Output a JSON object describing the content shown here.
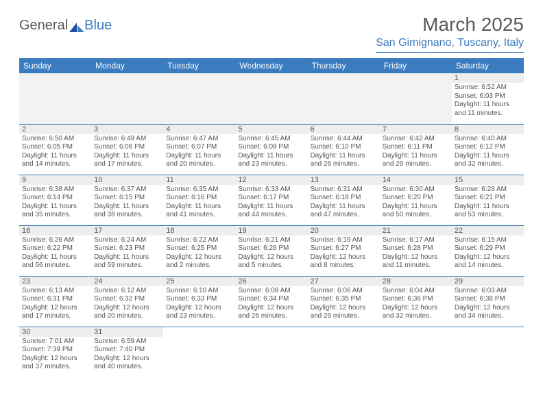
{
  "logo": {
    "text1": "General",
    "text2": "Blue",
    "color1": "#5a5a5a",
    "color2": "#3b7bbf"
  },
  "title": "March 2025",
  "location": "San Gimignano, Tuscany, Italy",
  "colors": {
    "header_bg": "#3b7bbf",
    "header_fg": "#ffffff",
    "text": "#555555",
    "accent": "#3b7bbf",
    "row_stripe": "#eeeeee",
    "empty_bg": "#f2f2f2"
  },
  "typography": {
    "title_fontsize": 28,
    "location_fontsize": 16,
    "header_fontsize": 12,
    "daynum_fontsize": 11,
    "body_fontsize": 10
  },
  "days_of_week": [
    "Sunday",
    "Monday",
    "Tuesday",
    "Wednesday",
    "Thursday",
    "Friday",
    "Saturday"
  ],
  "weeks": [
    [
      null,
      null,
      null,
      null,
      null,
      null,
      {
        "n": "1",
        "sunrise": "Sunrise: 6:52 AM",
        "sunset": "Sunset: 6:03 PM",
        "daylight": "Daylight: 11 hours and 11 minutes."
      }
    ],
    [
      {
        "n": "2",
        "sunrise": "Sunrise: 6:50 AM",
        "sunset": "Sunset: 6:05 PM",
        "daylight": "Daylight: 11 hours and 14 minutes."
      },
      {
        "n": "3",
        "sunrise": "Sunrise: 6:49 AM",
        "sunset": "Sunset: 6:06 PM",
        "daylight": "Daylight: 11 hours and 17 minutes."
      },
      {
        "n": "4",
        "sunrise": "Sunrise: 6:47 AM",
        "sunset": "Sunset: 6:07 PM",
        "daylight": "Daylight: 11 hours and 20 minutes."
      },
      {
        "n": "5",
        "sunrise": "Sunrise: 6:45 AM",
        "sunset": "Sunset: 6:09 PM",
        "daylight": "Daylight: 11 hours and 23 minutes."
      },
      {
        "n": "6",
        "sunrise": "Sunrise: 6:44 AM",
        "sunset": "Sunset: 6:10 PM",
        "daylight": "Daylight: 11 hours and 26 minutes."
      },
      {
        "n": "7",
        "sunrise": "Sunrise: 6:42 AM",
        "sunset": "Sunset: 6:11 PM",
        "daylight": "Daylight: 11 hours and 29 minutes."
      },
      {
        "n": "8",
        "sunrise": "Sunrise: 6:40 AM",
        "sunset": "Sunset: 6:12 PM",
        "daylight": "Daylight: 11 hours and 32 minutes."
      }
    ],
    [
      {
        "n": "9",
        "sunrise": "Sunrise: 6:38 AM",
        "sunset": "Sunset: 6:14 PM",
        "daylight": "Daylight: 11 hours and 35 minutes."
      },
      {
        "n": "10",
        "sunrise": "Sunrise: 6:37 AM",
        "sunset": "Sunset: 6:15 PM",
        "daylight": "Daylight: 11 hours and 38 minutes."
      },
      {
        "n": "11",
        "sunrise": "Sunrise: 6:35 AM",
        "sunset": "Sunset: 6:16 PM",
        "daylight": "Daylight: 11 hours and 41 minutes."
      },
      {
        "n": "12",
        "sunrise": "Sunrise: 6:33 AM",
        "sunset": "Sunset: 6:17 PM",
        "daylight": "Daylight: 11 hours and 44 minutes."
      },
      {
        "n": "13",
        "sunrise": "Sunrise: 6:31 AM",
        "sunset": "Sunset: 6:18 PM",
        "daylight": "Daylight: 11 hours and 47 minutes."
      },
      {
        "n": "14",
        "sunrise": "Sunrise: 6:30 AM",
        "sunset": "Sunset: 6:20 PM",
        "daylight": "Daylight: 11 hours and 50 minutes."
      },
      {
        "n": "15",
        "sunrise": "Sunrise: 6:28 AM",
        "sunset": "Sunset: 6:21 PM",
        "daylight": "Daylight: 11 hours and 53 minutes."
      }
    ],
    [
      {
        "n": "16",
        "sunrise": "Sunrise: 6:26 AM",
        "sunset": "Sunset: 6:22 PM",
        "daylight": "Daylight: 11 hours and 56 minutes."
      },
      {
        "n": "17",
        "sunrise": "Sunrise: 6:24 AM",
        "sunset": "Sunset: 6:23 PM",
        "daylight": "Daylight: 11 hours and 59 minutes."
      },
      {
        "n": "18",
        "sunrise": "Sunrise: 6:22 AM",
        "sunset": "Sunset: 6:25 PM",
        "daylight": "Daylight: 12 hours and 2 minutes."
      },
      {
        "n": "19",
        "sunrise": "Sunrise: 6:21 AM",
        "sunset": "Sunset: 6:26 PM",
        "daylight": "Daylight: 12 hours and 5 minutes."
      },
      {
        "n": "20",
        "sunrise": "Sunrise: 6:19 AM",
        "sunset": "Sunset: 6:27 PM",
        "daylight": "Daylight: 12 hours and 8 minutes."
      },
      {
        "n": "21",
        "sunrise": "Sunrise: 6:17 AM",
        "sunset": "Sunset: 6:28 PM",
        "daylight": "Daylight: 12 hours and 11 minutes."
      },
      {
        "n": "22",
        "sunrise": "Sunrise: 6:15 AM",
        "sunset": "Sunset: 6:29 PM",
        "daylight": "Daylight: 12 hours and 14 minutes."
      }
    ],
    [
      {
        "n": "23",
        "sunrise": "Sunrise: 6:13 AM",
        "sunset": "Sunset: 6:31 PM",
        "daylight": "Daylight: 12 hours and 17 minutes."
      },
      {
        "n": "24",
        "sunrise": "Sunrise: 6:12 AM",
        "sunset": "Sunset: 6:32 PM",
        "daylight": "Daylight: 12 hours and 20 minutes."
      },
      {
        "n": "25",
        "sunrise": "Sunrise: 6:10 AM",
        "sunset": "Sunset: 6:33 PM",
        "daylight": "Daylight: 12 hours and 23 minutes."
      },
      {
        "n": "26",
        "sunrise": "Sunrise: 6:08 AM",
        "sunset": "Sunset: 6:34 PM",
        "daylight": "Daylight: 12 hours and 26 minutes."
      },
      {
        "n": "27",
        "sunrise": "Sunrise: 6:06 AM",
        "sunset": "Sunset: 6:35 PM",
        "daylight": "Daylight: 12 hours and 29 minutes."
      },
      {
        "n": "28",
        "sunrise": "Sunrise: 6:04 AM",
        "sunset": "Sunset: 6:36 PM",
        "daylight": "Daylight: 12 hours and 32 minutes."
      },
      {
        "n": "29",
        "sunrise": "Sunrise: 6:03 AM",
        "sunset": "Sunset: 6:38 PM",
        "daylight": "Daylight: 12 hours and 34 minutes."
      }
    ],
    [
      {
        "n": "30",
        "sunrise": "Sunrise: 7:01 AM",
        "sunset": "Sunset: 7:39 PM",
        "daylight": "Daylight: 12 hours and 37 minutes."
      },
      {
        "n": "31",
        "sunrise": "Sunrise: 6:59 AM",
        "sunset": "Sunset: 7:40 PM",
        "daylight": "Daylight: 12 hours and 40 minutes."
      },
      null,
      null,
      null,
      null,
      null
    ]
  ]
}
